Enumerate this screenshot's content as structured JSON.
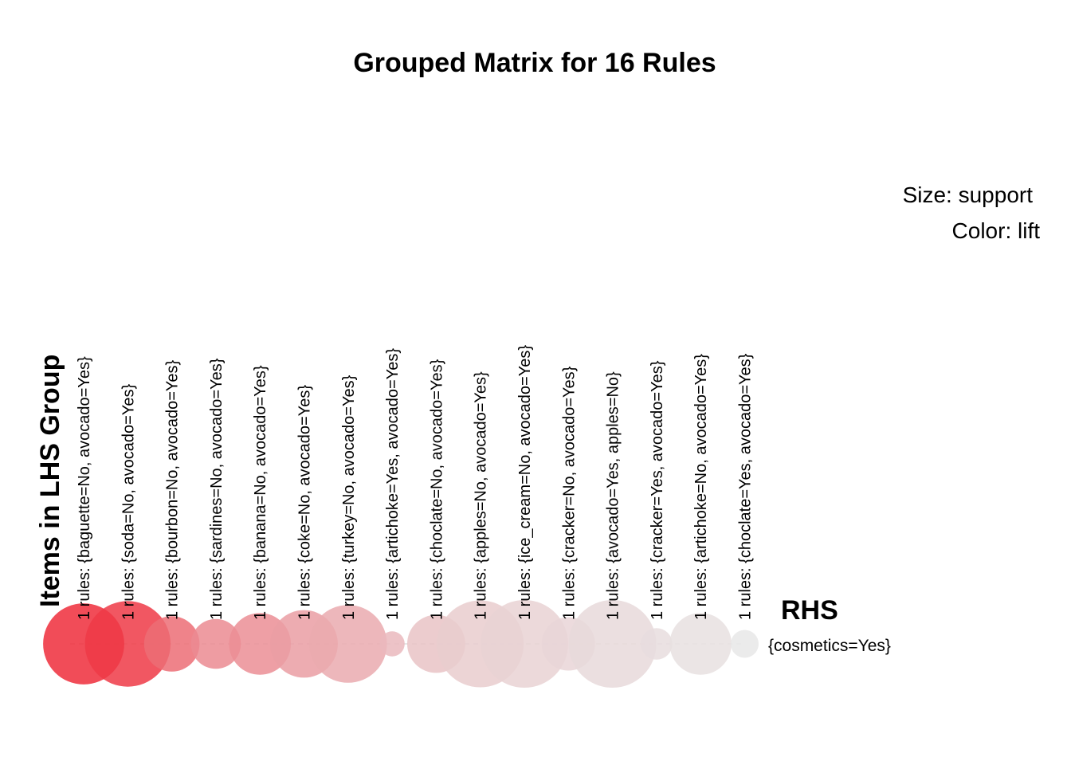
{
  "chart_data": {
    "type": "scatter",
    "title": "Grouped Matrix for 16 Rules",
    "xlabel": "Items in LHS Group",
    "ylabel": "RHS",
    "size_legend": "Size: support",
    "color_legend": "Color: lift",
    "rhs_categories": [
      "{cosmetics=Yes}"
    ],
    "lhs_groups": [
      {
        "label": "1 rules: {baguette=No, avocado=Yes}",
        "support": 0.85,
        "lift": 1.0
      },
      {
        "label": "1 rules: {soda=No, avocado=Yes}",
        "support": 0.95,
        "lift": 0.93
      },
      {
        "label": "1 rules: {bourbon=No, avocado=Yes}",
        "support": 0.38,
        "lift": 0.66
      },
      {
        "label": "1 rules: {sardines=No, avocado=Yes}",
        "support": 0.3,
        "lift": 0.5
      },
      {
        "label": "1 rules: {banana=No, avocado=Yes}",
        "support": 0.48,
        "lift": 0.48
      },
      {
        "label": "1 rules: {coke=No, avocado=Yes}",
        "support": 0.58,
        "lift": 0.4
      },
      {
        "label": "1 rules: {turkey=No, avocado=Yes}",
        "support": 0.78,
        "lift": 0.33
      },
      {
        "label": "1 rules: {artichoke=Yes, avocado=Yes}",
        "support": 0.05,
        "lift": 0.25
      },
      {
        "label": "1 rules: {choclate=No, avocado=Yes}",
        "support": 0.42,
        "lift": 0.2
      },
      {
        "label": "1 rules: {apples=No, avocado=Yes}",
        "support": 0.98,
        "lift": 0.15
      },
      {
        "label": "1 rules: {ice_cream=No, avocado=Yes}",
        "support": 1.0,
        "lift": 0.12
      },
      {
        "label": "1 rules: {cracker=No, avocado=Yes}",
        "support": 0.35,
        "lift": 0.1
      },
      {
        "label": "1 rules: {avocado=Yes, apples=No}",
        "support": 1.0,
        "lift": 0.08
      },
      {
        "label": "1 rules: {cracker=Yes, avocado=Yes}",
        "support": 0.1,
        "lift": 0.06
      },
      {
        "label": "1 rules: {artichoke=No, avocado=Yes}",
        "support": 0.48,
        "lift": 0.04
      },
      {
        "label": "1 rules: {choclate=Yes, avocado=Yes}",
        "support": 0.07,
        "lift": 0.0
      }
    ],
    "color_scale": {
      "low": "#e8e8e8",
      "high": "#ee2d3b"
    },
    "grid": false,
    "legend": "right"
  }
}
